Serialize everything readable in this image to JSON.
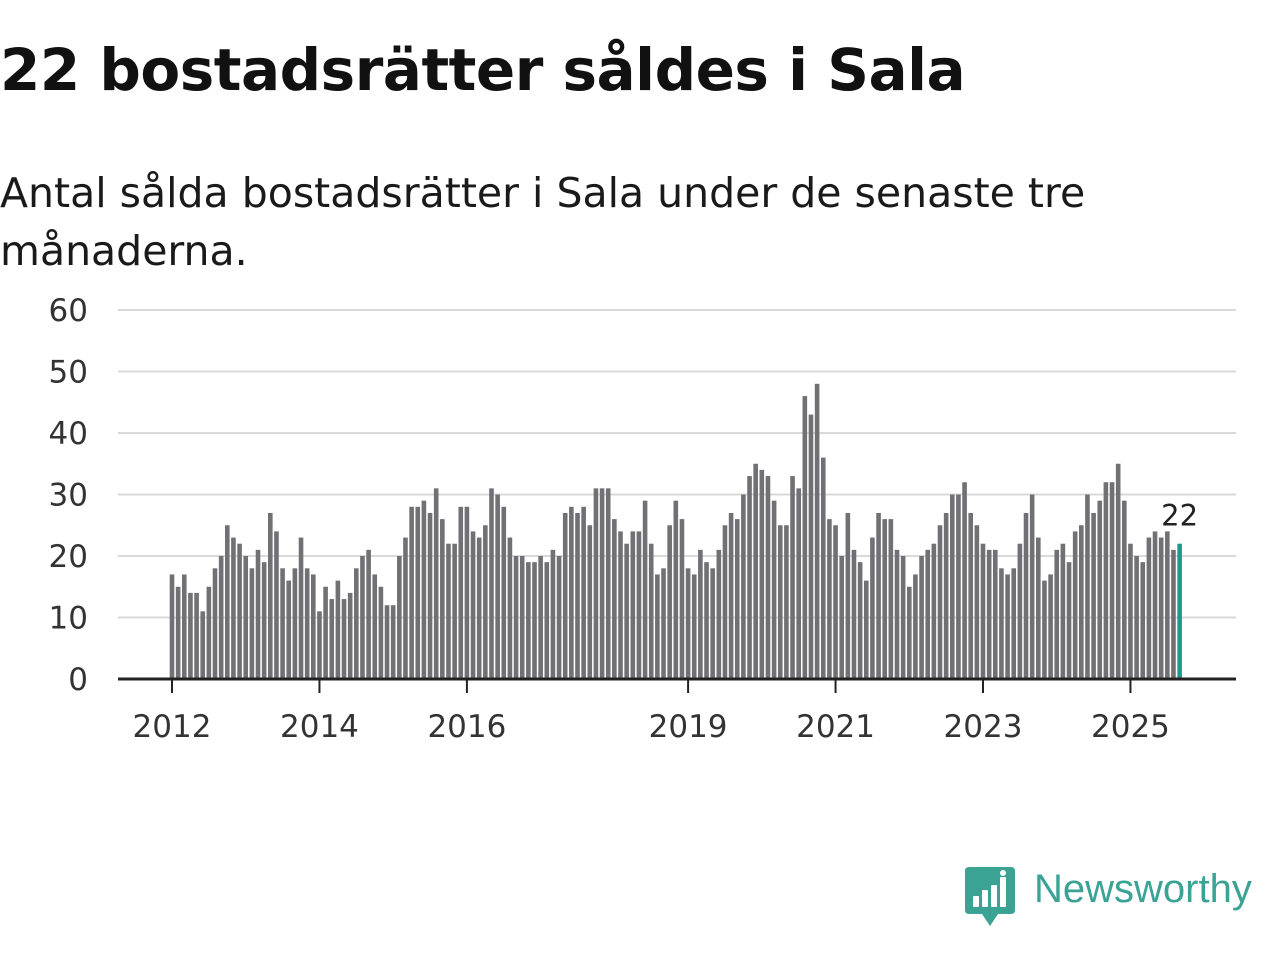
{
  "header": {
    "title": "22 bostadsrätter såldes i Sala",
    "subtitle": "Antal sålda bostadsrätter i Sala under de senaste tre månaderna."
  },
  "brand": {
    "name": "Newsworthy",
    "color": "#3aa394"
  },
  "colors": {
    "bar": "#717075",
    "highlight": "#1b9a8e",
    "grid": "#d9d9d9",
    "axis": "#222222"
  },
  "chart_data": {
    "type": "bar",
    "title": "22 bostadsrätter såldes i Sala",
    "xlabel": "",
    "ylabel": "",
    "ylim": [
      0,
      60
    ],
    "yticks": [
      0,
      10,
      20,
      30,
      40,
      50,
      60
    ],
    "grid": true,
    "xticks": [
      {
        "label": "2012",
        "index": 0
      },
      {
        "label": "2014",
        "index": 24
      },
      {
        "label": "2016",
        "index": 48
      },
      {
        "label": "2019",
        "index": 84
      },
      {
        "label": "2021",
        "index": 108
      },
      {
        "label": "2023",
        "index": 132
      },
      {
        "label": "2025",
        "index": 156
      }
    ],
    "start_month": "2012-01",
    "values": [
      17,
      15,
      17,
      14,
      14,
      11,
      15,
      18,
      20,
      25,
      23,
      22,
      20,
      18,
      21,
      19,
      27,
      24,
      18,
      16,
      18,
      23,
      18,
      17,
      11,
      15,
      13,
      16,
      13,
      14,
      18,
      20,
      21,
      17,
      15,
      12,
      12,
      20,
      23,
      28,
      28,
      29,
      27,
      31,
      26,
      22,
      22,
      28,
      28,
      24,
      23,
      25,
      31,
      30,
      28,
      23,
      20,
      20,
      19,
      19,
      20,
      19,
      21,
      20,
      27,
      28,
      27,
      28,
      25,
      31,
      31,
      31,
      26,
      24,
      22,
      24,
      24,
      29,
      22,
      17,
      18,
      25,
      29,
      26,
      18,
      17,
      21,
      19,
      18,
      21,
      25,
      27,
      26,
      30,
      33,
      35,
      34,
      33,
      29,
      25,
      25,
      33,
      31,
      46,
      43,
      48,
      36,
      26,
      25,
      20,
      27,
      21,
      19,
      16,
      23,
      27,
      26,
      26,
      21,
      20,
      15,
      17,
      20,
      21,
      22,
      25,
      27,
      30,
      30,
      32,
      27,
      25,
      22,
      21,
      21,
      18,
      17,
      18,
      22,
      27,
      30,
      23,
      16,
      17,
      21,
      22,
      19,
      24,
      25,
      30,
      27,
      29,
      32,
      32,
      35,
      29,
      22,
      20,
      19,
      23,
      24,
      23,
      24,
      21,
      22
    ],
    "highlight_label": "22"
  }
}
